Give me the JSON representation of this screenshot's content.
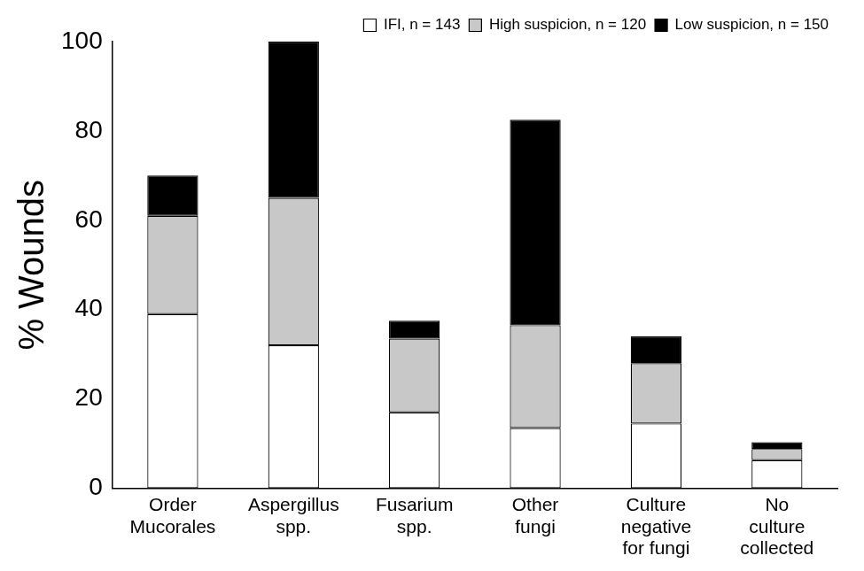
{
  "chart_data": {
    "type": "bar",
    "categories": [
      "Order\nMucorales",
      "Aspergillus\nspp.",
      "Fusarium\nspp.",
      "Other\nfungi",
      "Culture\nnegative\nfor fungi",
      "No\nculture\ncollected"
    ],
    "series": [
      {
        "name": "IFI, n = 143",
        "color": "#ffffff",
        "values": [
          39,
          32,
          17,
          13.5,
          14.5,
          6.3
        ]
      },
      {
        "name": "High suspicion, n = 120",
        "color": "#c8c8c8",
        "values": [
          22,
          33,
          16.5,
          23,
          13.5,
          2.5
        ]
      },
      {
        "name": "Low suspicion, n = 150",
        "color": "#000000",
        "values": [
          9,
          35,
          4,
          46,
          6,
          1.5
        ]
      }
    ],
    "y_label": "% Wounds",
    "ylim": [
      0,
      100
    ],
    "yticks": [
      0,
      20,
      40,
      60,
      80,
      100
    ],
    "stacked": true,
    "grid": false,
    "legend": "upper right"
  }
}
